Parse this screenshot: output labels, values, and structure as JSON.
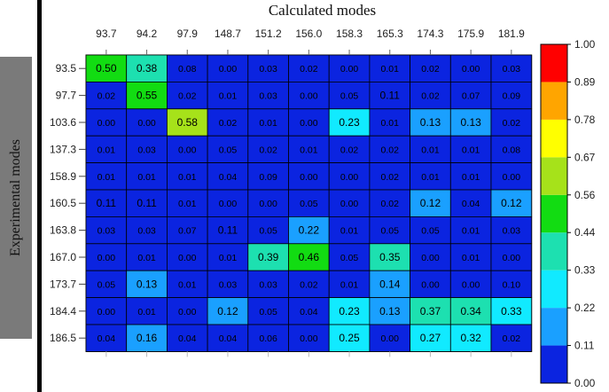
{
  "chart_data": {
    "type": "heatmap",
    "title": "Calculated modes",
    "xlabel": "Calculated modes",
    "ylabel": "Experimental modes",
    "x_categories": [
      "93.7",
      "94.2",
      "97.9",
      "148.7",
      "151.2",
      "156.0",
      "158.3",
      "165.3",
      "174.3",
      "175.9",
      "181.9"
    ],
    "y_categories": [
      "93.5",
      "97.7",
      "103.6",
      "137.3",
      "158.9",
      "160.5",
      "163.8",
      "167.0",
      "173.7",
      "184.4",
      "186.5"
    ],
    "values": [
      [
        "0.50",
        "0.38",
        "0.08",
        "0.00",
        "0.03",
        "0.02",
        "0.00",
        "0.01",
        "0.02",
        "0.00",
        "0.03"
      ],
      [
        "0.02",
        "0.55",
        "0.02",
        "0.01",
        "0.03",
        "0.00",
        "0.05",
        "0.11",
        "0.02",
        "0.07",
        "0.09"
      ],
      [
        "0.00",
        "0.00",
        "0.58",
        "0.02",
        "0.01",
        "0.00",
        "0.23",
        "0.01",
        "0.13",
        "0.13",
        "0.02"
      ],
      [
        "0.01",
        "0.03",
        "0.00",
        "0.05",
        "0.02",
        "0.01",
        "0.02",
        "0.02",
        "0.01",
        "0.01",
        "0.08"
      ],
      [
        "0.01",
        "0.01",
        "0.01",
        "0.04",
        "0.09",
        "0.00",
        "0.00",
        "0.02",
        "0.01",
        "0.01",
        "0.00"
      ],
      [
        "0.11",
        "0.11",
        "0.01",
        "0.00",
        "0.00",
        "0.05",
        "0.00",
        "0.02",
        "0.12",
        "0.04",
        "0.12"
      ],
      [
        "0.03",
        "0.03",
        "0.07",
        "0.11",
        "0.05",
        "0.22",
        "0.01",
        "0.05",
        "0.05",
        "0.01",
        "0.03"
      ],
      [
        "0.00",
        "0.01",
        "0.00",
        "0.01",
        "0.39",
        "0.46",
        "0.05",
        "0.35",
        "0.00",
        "0.01",
        "0.00"
      ],
      [
        "0.05",
        "0.13",
        "0.01",
        "0.03",
        "0.03",
        "0.02",
        "0.01",
        "0.14",
        "0.00",
        "0.00",
        "0.10"
      ],
      [
        "0.00",
        "0.01",
        "0.00",
        "0.12",
        "0.05",
        "0.04",
        "0.23",
        "0.13",
        "0.37",
        "0.34",
        "0.33"
      ],
      [
        "0.04",
        "0.16",
        "0.04",
        "0.04",
        "0.06",
        "0.00",
        "0.25",
        "0.00",
        "0.27",
        "0.32",
        "0.02"
      ]
    ],
    "colorbar": {
      "ticks": [
        "1.00",
        "0.89",
        "0.78",
        "0.67",
        "0.56",
        "0.44",
        "0.33",
        "0.22",
        "0.11",
        "0.00"
      ],
      "colors_bottom_to_top": [
        "#0b24e0",
        "#1aa0ff",
        "#11eaff",
        "#1de0b0",
        "#12dc12",
        "#a6e21a",
        "#ffff00",
        "#ffa500",
        "#ff0000"
      ]
    },
    "grid": true,
    "legend": "right"
  }
}
